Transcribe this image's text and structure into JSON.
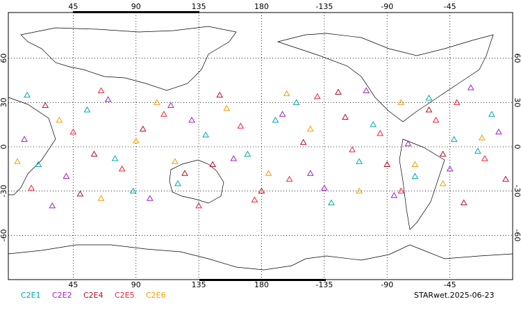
{
  "chart_data": {
    "type": "scatter",
    "xlim": [
      0,
      360
    ],
    "xticks": [
      45,
      90,
      135,
      180,
      {
        "value": 225,
        "label": "-135"
      },
      {
        "value": 270,
        "label": "-90"
      },
      {
        "value": 315,
        "label": "-45"
      }
    ],
    "ylim": [
      -90,
      90
    ],
    "yticks": [
      -60,
      -30,
      0,
      30,
      60
    ],
    "grid": true,
    "annotation": "STARwet.2025-06-23",
    "series": [
      {
        "name": "C2E1",
        "color": "#00a8b0",
        "x": [
          20,
          55,
          88,
          140,
          170,
          205,
          230,
          260,
          290,
          318,
          345,
          12,
          75,
          120,
          190,
          250,
          300,
          335
        ],
        "y": [
          -12,
          25,
          -30,
          8,
          -5,
          30,
          -38,
          15,
          -20,
          5,
          22,
          35,
          -8,
          -25,
          18,
          -10,
          33,
          -3
        ]
      },
      {
        "name": "C2E2",
        "color": "#a020c0",
        "x": [
          10,
          40,
          70,
          100,
          130,
          160,
          195,
          225,
          255,
          285,
          315,
          350,
          30,
          115,
          215,
          275,
          330
        ],
        "y": [
          5,
          -20,
          32,
          -35,
          18,
          -8,
          22,
          -28,
          38,
          2,
          -15,
          10,
          -40,
          28,
          -18,
          -33,
          40
        ]
      },
      {
        "name": "C2E4",
        "color": "#b0102a",
        "x": [
          25,
          60,
          95,
          125,
          150,
          180,
          210,
          240,
          270,
          300,
          325,
          355,
          50,
          145,
          235,
          310
        ],
        "y": [
          28,
          -5,
          12,
          -18,
          35,
          -30,
          3,
          20,
          -12,
          25,
          -38,
          -22,
          -32,
          -12,
          37,
          -5
        ]
      },
      {
        "name": "C2E5",
        "color": "#f0203a",
        "x": [
          15,
          45,
          80,
          110,
          135,
          165,
          200,
          220,
          245,
          280,
          305,
          340,
          65,
          175,
          265,
          320
        ],
        "y": [
          -28,
          10,
          -15,
          22,
          -40,
          14,
          -22,
          34,
          -2,
          -30,
          18,
          -8,
          38,
          -36,
          9,
          30
        ]
      },
      {
        "name": "C2E6",
        "color": "#f0a000",
        "x": [
          35,
          65,
          90,
          118,
          155,
          185,
          215,
          250,
          280,
          310,
          338,
          5,
          105,
          198,
          290
        ],
        "y": [
          18,
          -35,
          4,
          -10,
          26,
          -18,
          12,
          -30,
          30,
          -25,
          6,
          -10,
          30,
          36,
          -12
        ]
      }
    ]
  }
}
